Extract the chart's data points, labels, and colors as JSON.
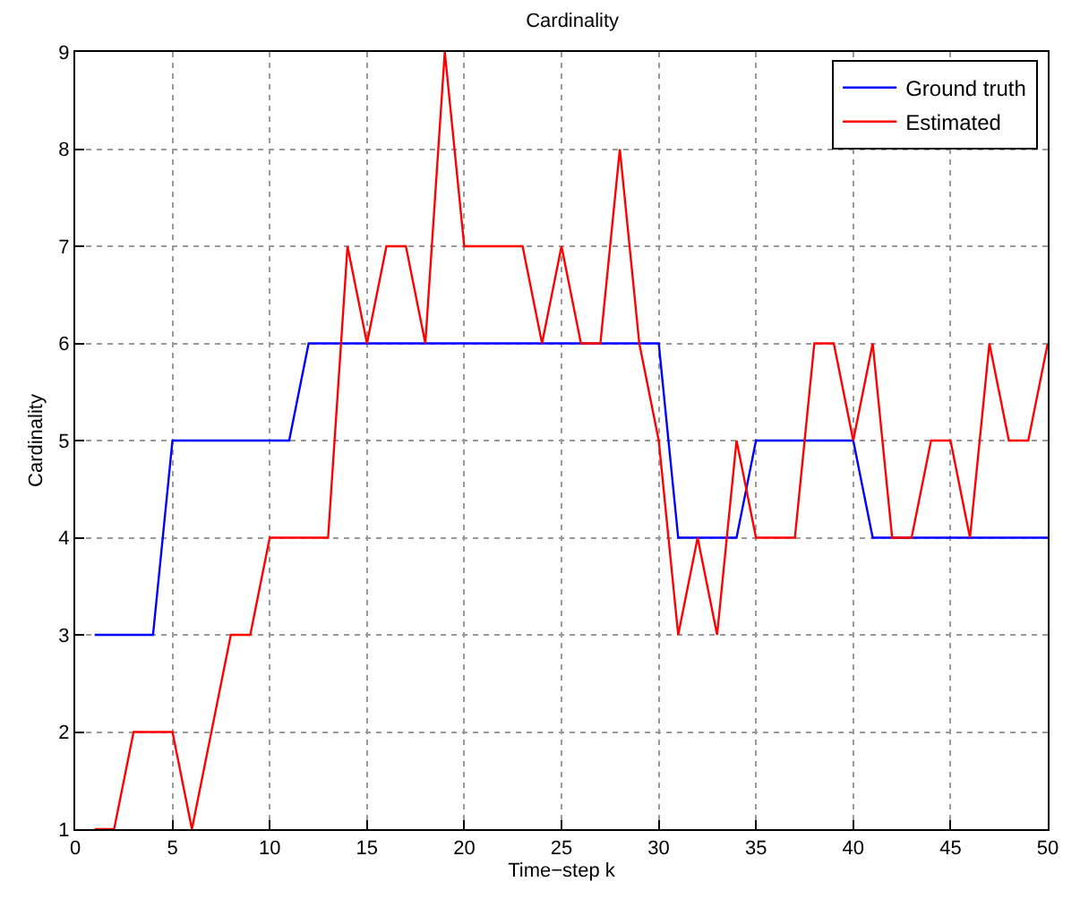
{
  "chart_data": {
    "type": "line",
    "title": "Cardinality",
    "xlabel": "Time−step k",
    "ylabel": "Cardinality",
    "x": [
      1,
      2,
      3,
      4,
      5,
      6,
      7,
      8,
      9,
      10,
      11,
      12,
      13,
      14,
      15,
      16,
      17,
      18,
      19,
      20,
      21,
      22,
      23,
      24,
      25,
      26,
      27,
      28,
      29,
      30,
      31,
      32,
      33,
      34,
      35,
      36,
      37,
      38,
      39,
      40,
      41,
      42,
      43,
      44,
      45,
      46,
      47,
      48,
      49,
      50
    ],
    "series": [
      {
        "name": "Ground truth",
        "color": "#0000ff",
        "values": [
          3,
          3,
          3,
          3,
          5,
          5,
          5,
          5,
          5,
          5,
          5,
          6,
          6,
          6,
          6,
          6,
          6,
          6,
          6,
          6,
          6,
          6,
          6,
          6,
          6,
          6,
          6,
          6,
          6,
          6,
          4,
          4,
          4,
          4,
          5,
          5,
          5,
          5,
          5,
          5,
          4,
          4,
          4,
          4,
          4,
          4,
          4,
          4,
          4,
          4
        ]
      },
      {
        "name": "Estimated",
        "color": "#ff0000",
        "values": [
          1,
          1,
          2,
          2,
          2,
          1,
          2,
          3,
          3,
          4,
          4,
          4,
          4,
          7,
          6,
          7,
          7,
          6,
          9,
          7,
          7,
          7,
          7,
          6,
          7,
          6,
          6,
          8,
          6,
          5,
          3,
          4,
          3,
          5,
          4,
          4,
          4,
          6,
          6,
          5,
          6,
          4,
          4,
          5,
          5,
          4,
          6,
          5,
          5,
          6
        ]
      }
    ],
    "xlim": [
      0,
      50
    ],
    "xticks": [
      0,
      5,
      10,
      15,
      20,
      25,
      30,
      35,
      40,
      45,
      50
    ],
    "ylim": [
      1,
      9
    ],
    "yticks": [
      1,
      2,
      3,
      4,
      5,
      6,
      7,
      8,
      9
    ],
    "grid": true,
    "legend": "top right",
    "marker": "none",
    "line_style": "solid"
  }
}
